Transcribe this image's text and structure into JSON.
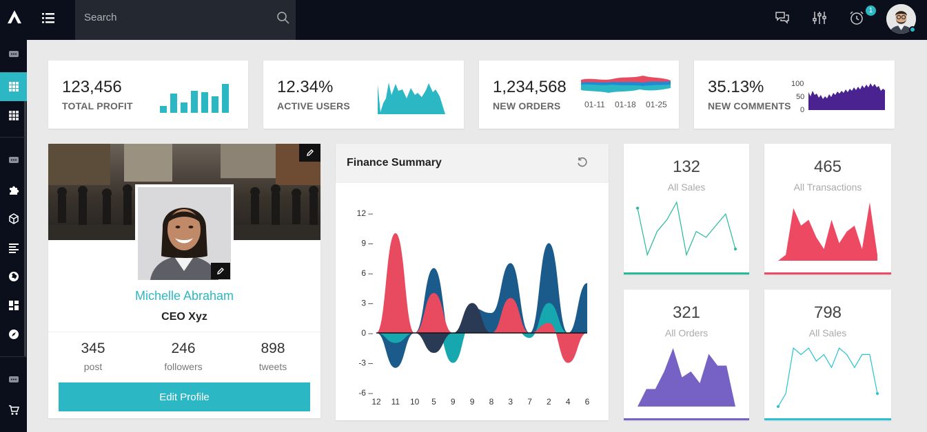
{
  "header": {
    "search_placeholder": "Search",
    "notification_count": "1"
  },
  "stats": [
    {
      "value": "123,456",
      "label": "TOTAL PROFIT",
      "color": "#2bb8c4"
    },
    {
      "value": "12.34%",
      "label": "ACTIVE USERS",
      "color": "#2bb8c4"
    },
    {
      "value": "1,234,568",
      "label": "NEW ORDERS",
      "color": "#e84a5f",
      "dates": [
        "01-11",
        "01-18",
        "01-25"
      ]
    },
    {
      "value": "35.13%",
      "label": "NEW COMMENTS",
      "color": "#4a2390",
      "ticks": [
        "100",
        "50",
        "0"
      ]
    }
  ],
  "profile": {
    "name": "Michelle Abraham",
    "role": "CEO Xyz",
    "stats": [
      {
        "value": "345",
        "label": "post"
      },
      {
        "value": "246",
        "label": "followers"
      },
      {
        "value": "898",
        "label": "tweets"
      }
    ],
    "edit_label": "Edit Profile"
  },
  "finance": {
    "title": "Finance Summary",
    "chart_data": {
      "type": "area",
      "categories": [
        "12",
        "11",
        "10",
        "5",
        "9",
        "9",
        "8",
        "3",
        "7",
        "2",
        "4",
        "6"
      ],
      "ylim": [
        -6,
        12
      ],
      "yticks": [
        "12",
        "9",
        "6",
        "3",
        "0",
        "-3",
        "-6"
      ],
      "series": [
        {
          "color": "#1a5b8c",
          "values": [
            0,
            -3.5,
            0,
            6.5,
            -1,
            2.5,
            2,
            7,
            0,
            9,
            0,
            5
          ]
        },
        {
          "color": "#16a8ae",
          "values": [
            0,
            -1,
            0,
            1,
            -3,
            1,
            0,
            1,
            -0.5,
            3,
            0,
            0
          ]
        },
        {
          "color": "#2a3a54",
          "values": [
            0,
            0,
            0,
            -2,
            0,
            3,
            0,
            0,
            0,
            0,
            0,
            0
          ]
        },
        {
          "color": "#e84a5f",
          "values": [
            0,
            10,
            0,
            4,
            0,
            0,
            0,
            3.5,
            0,
            1,
            -3,
            0
          ]
        }
      ]
    }
  },
  "mini_cards": [
    {
      "value": "132",
      "label": "All Sales",
      "color": "#26b99a",
      "type": "line",
      "values": [
        9,
        1,
        5,
        7,
        10,
        1,
        5,
        4,
        6,
        8,
        2
      ]
    },
    {
      "value": "465",
      "label": "All Transactions",
      "color": "#ed4963",
      "type": "area",
      "values": [
        0,
        1,
        9,
        6,
        7,
        4,
        2,
        7,
        3,
        5,
        6,
        2,
        10,
        1
      ]
    },
    {
      "value": "321",
      "label": "All Orders",
      "color": "#7562c4",
      "type": "area",
      "values": [
        0,
        3,
        3,
        6,
        10,
        5,
        6,
        4,
        9,
        7,
        7,
        0
      ]
    },
    {
      "value": "798",
      "label": "All Sales",
      "color": "#26c2d2",
      "type": "line",
      "values": [
        0,
        2,
        9,
        8,
        9,
        7,
        8,
        6,
        9,
        8,
        6,
        8,
        8,
        2
      ]
    }
  ]
}
